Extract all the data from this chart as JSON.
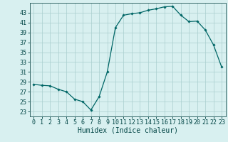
{
  "title": "",
  "xlabel": "Humidex (Indice chaleur)",
  "ylabel": "",
  "x_values": [
    0,
    1,
    2,
    3,
    4,
    5,
    6,
    7,
    8,
    9,
    10,
    11,
    12,
    13,
    14,
    15,
    16,
    17,
    18,
    19,
    20,
    21,
    22,
    23
  ],
  "y_values": [
    28.5,
    28.3,
    28.2,
    27.5,
    27.0,
    25.5,
    25.0,
    23.3,
    26.0,
    31.0,
    40.0,
    42.5,
    42.8,
    43.0,
    43.5,
    43.8,
    44.2,
    44.3,
    42.5,
    41.2,
    41.3,
    39.5,
    36.5,
    32.0
  ],
  "line_color": "#006666",
  "marker": "D",
  "marker_size": 1.8,
  "bg_color": "#d8f0f0",
  "grid_color": "#aacece",
  "tick_color": "#004444",
  "spine_color": "#336666",
  "ylim": [
    22,
    45
  ],
  "xlim": [
    -0.5,
    23.5
  ],
  "yticks": [
    23,
    25,
    27,
    29,
    31,
    33,
    35,
    37,
    39,
    41,
    43
  ],
  "xticks": [
    0,
    1,
    2,
    3,
    4,
    5,
    6,
    7,
    8,
    9,
    10,
    11,
    12,
    13,
    14,
    15,
    16,
    17,
    18,
    19,
    20,
    21,
    22,
    23
  ],
  "xlabel_fontsize": 7,
  "tick_fontsize": 6,
  "line_width": 0.9
}
